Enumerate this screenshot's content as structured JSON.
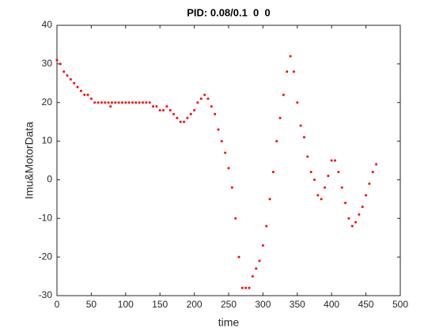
{
  "chart_data": {
    "type": "scatter",
    "title": "PID: 0.08/0.1  0  0",
    "x_label": "time",
    "y_label": "Imu&MotorData",
    "xlim": [
      0,
      500
    ],
    "ylim": [
      -30,
      40
    ],
    "xticks": [
      0,
      50,
      100,
      150,
      200,
      250,
      300,
      350,
      400,
      450,
      500
    ],
    "yticks": [
      -30,
      -20,
      -10,
      0,
      10,
      20,
      30,
      40
    ],
    "color": "#ff0000",
    "x": [
      0,
      5,
      10,
      15,
      20,
      25,
      30,
      35,
      40,
      45,
      50,
      55,
      60,
      65,
      70,
      75,
      78,
      80,
      85,
      90,
      95,
      100,
      105,
      110,
      115,
      120,
      125,
      130,
      135,
      140,
      145,
      150,
      155,
      160,
      165,
      170,
      175,
      180,
      185,
      190,
      195,
      200,
      205,
      210,
      215,
      220,
      225,
      230,
      235,
      240,
      245,
      250,
      255,
      260,
      265,
      270,
      275,
      280,
      285,
      290,
      295,
      300,
      305,
      310,
      315,
      320,
      325,
      330,
      335,
      340,
      345,
      350,
      355,
      360,
      365,
      370,
      375,
      380,
      385,
      390,
      395,
      400,
      405,
      410,
      415,
      420,
      425,
      430,
      435,
      440,
      445,
      450,
      455,
      460,
      465
    ],
    "values": [
      31,
      30,
      28,
      27,
      26,
      25,
      24,
      23,
      22,
      22,
      21,
      20,
      20,
      20,
      20,
      20,
      19,
      20,
      20,
      20,
      20,
      20,
      20,
      20,
      20,
      20,
      20,
      20,
      20,
      19,
      19,
      18,
      18,
      19,
      18,
      17,
      16,
      15,
      15,
      16,
      17,
      18,
      20,
      21,
      22,
      21,
      19,
      17,
      13,
      10,
      7,
      3,
      -2,
      -10,
      -20,
      -28,
      -28,
      -28,
      -25,
      -23,
      -21,
      -17,
      -12,
      -5,
      2,
      10,
      16,
      22,
      28,
      32,
      28,
      20,
      14,
      11,
      6,
      2,
      0,
      -4,
      -5,
      -2,
      1,
      5,
      5,
      2,
      -2,
      -6,
      -10,
      -12,
      -11,
      -9,
      -7,
      -4,
      -1,
      2,
      4
    ]
  }
}
